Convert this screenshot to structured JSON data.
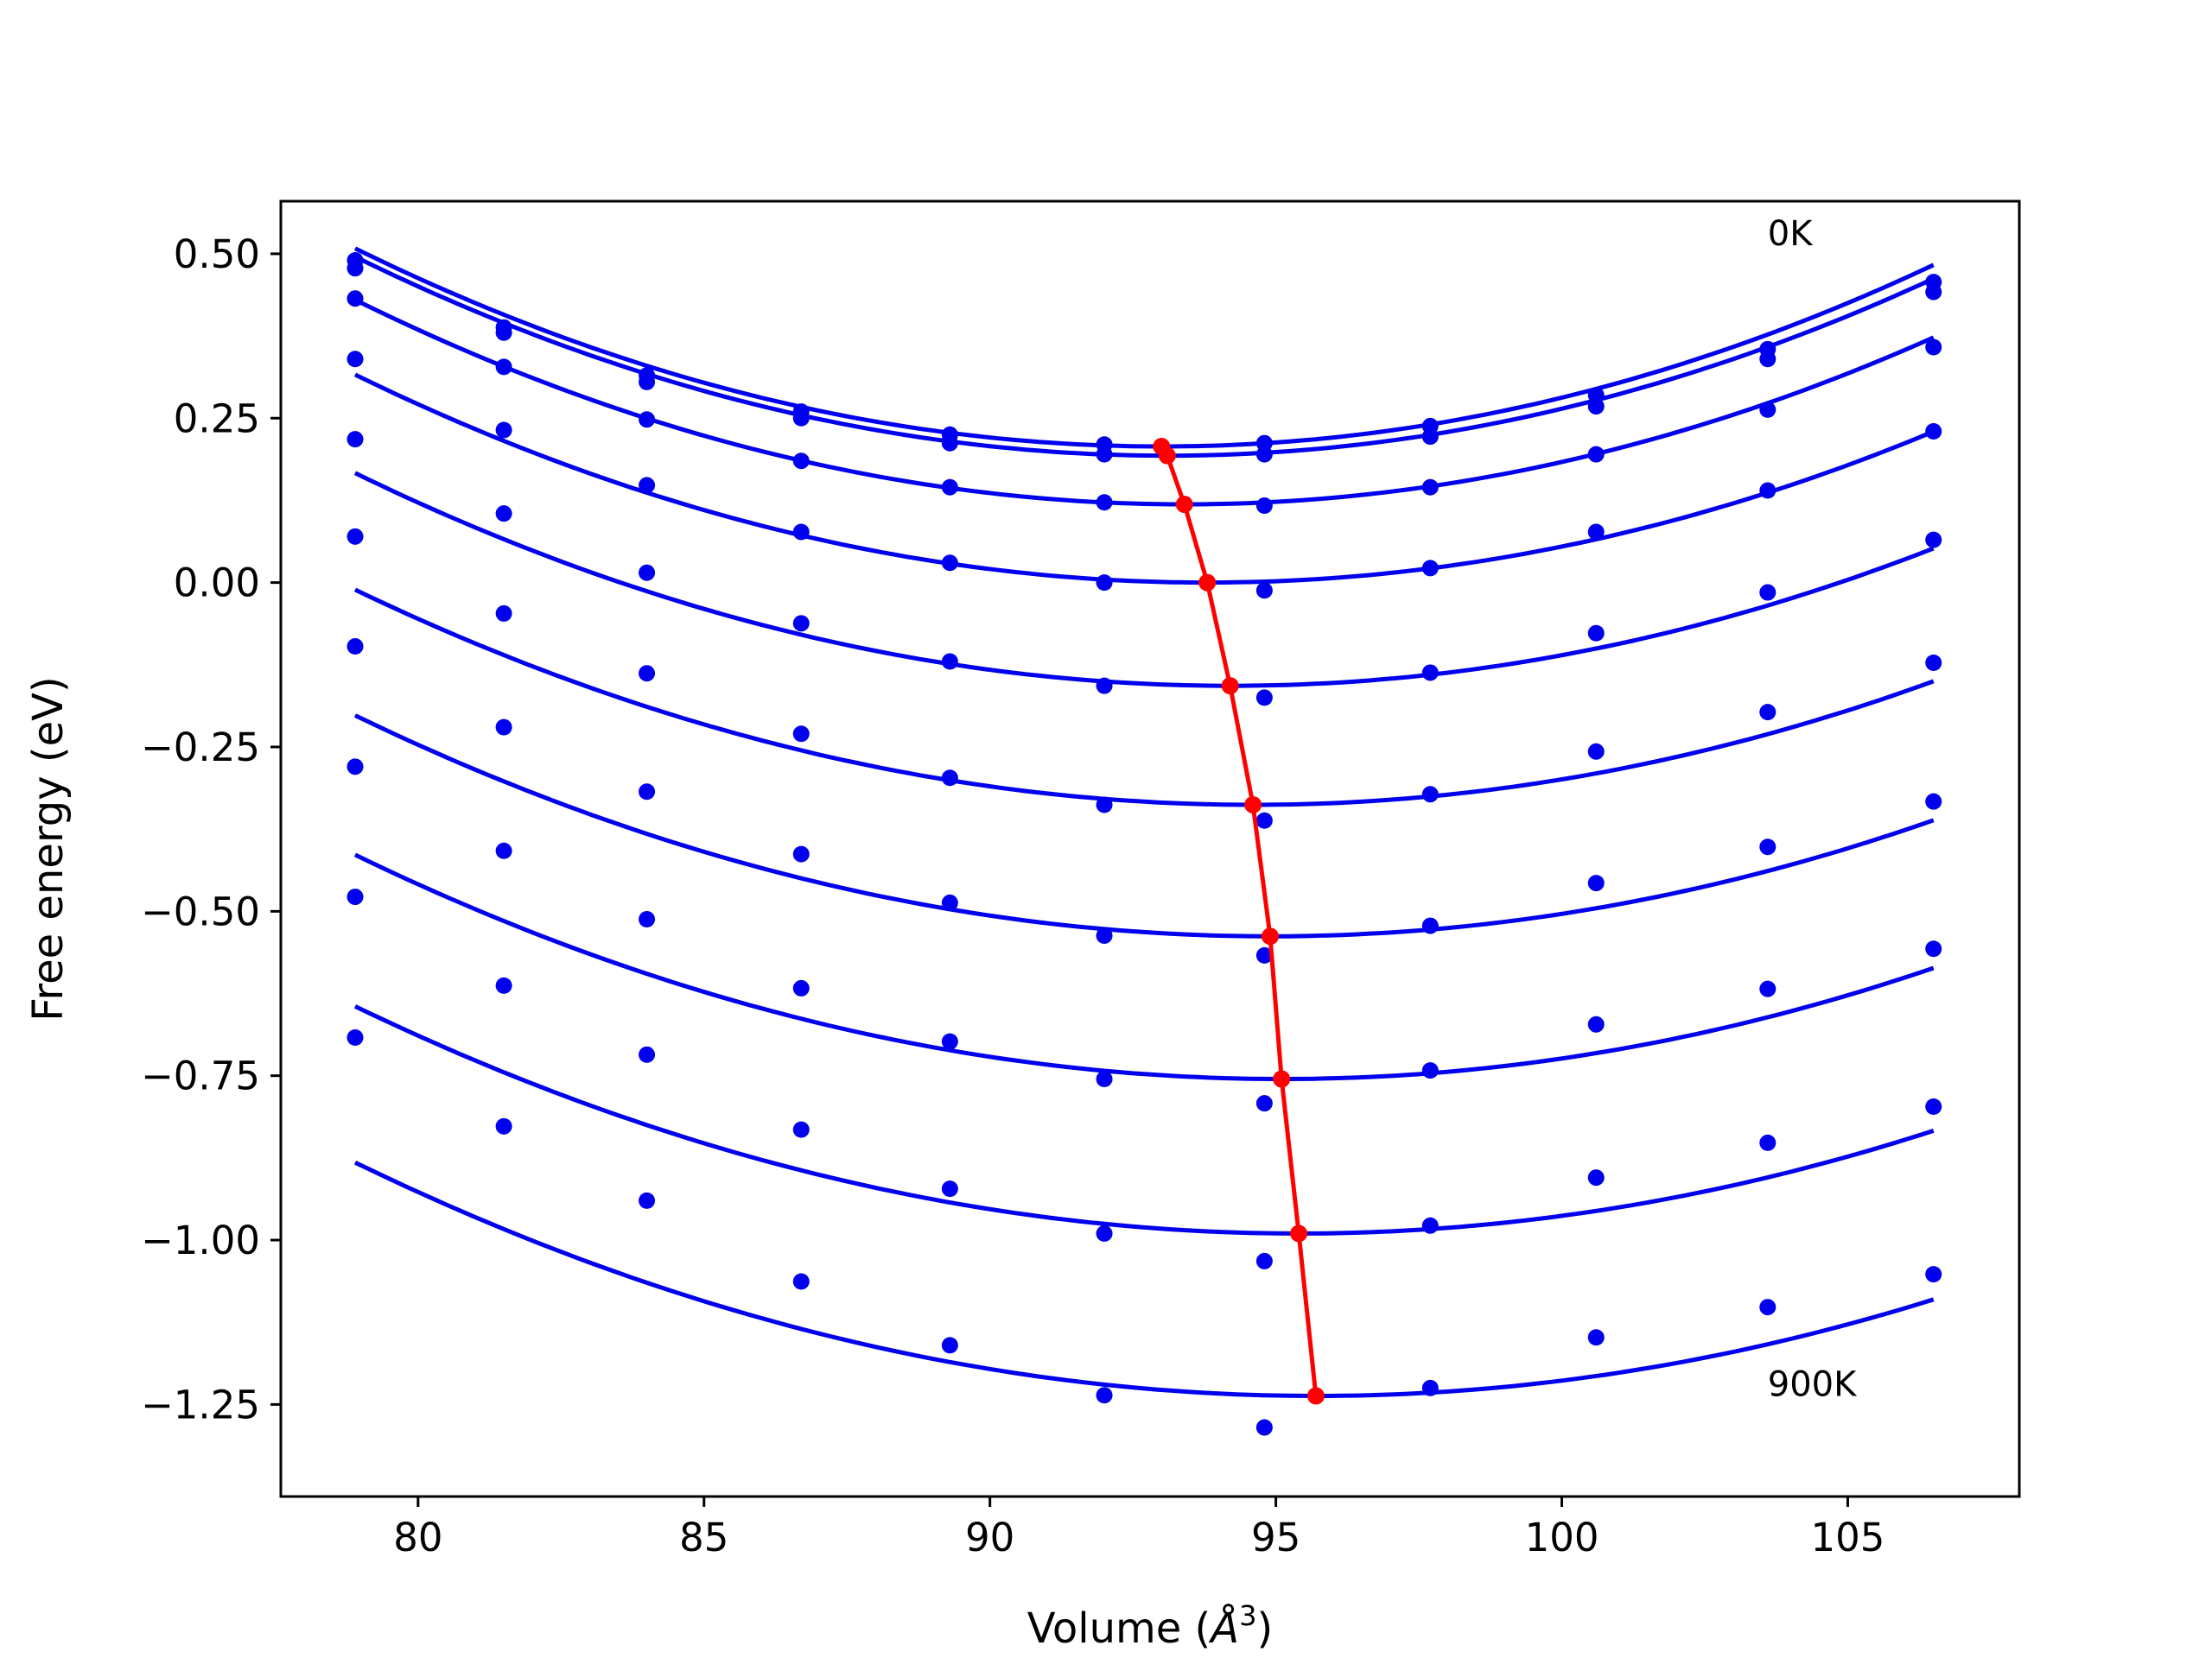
{
  "chart_data": {
    "type": "line",
    "title": "",
    "xlabel": "Volume (",
    "xlabel_symbol": "Å",
    "xlabel_exp": "3",
    "xlabel_close": ")",
    "ylabel": "Free energy (eV)",
    "xlim": [
      77.6,
      108.0
    ],
    "ylim": [
      -1.39,
      0.58
    ],
    "xticks": [
      80,
      85,
      90,
      95,
      100,
      105
    ],
    "xtick_labels": [
      "80",
      "85",
      "90",
      "95",
      "100",
      "105"
    ],
    "yticks": [
      0.5,
      0.25,
      0.0,
      -0.25,
      -0.5,
      -0.75,
      -1.0,
      -1.25
    ],
    "ytick_labels": [
      "0.50",
      "0.25",
      "0.00",
      "−0.25",
      "−0.50",
      "−0.75",
      "−1.00",
      "−1.25"
    ],
    "grid": false,
    "annotations": [
      {
        "text": "0K",
        "x": 103.6,
        "y": 0.5
      },
      {
        "text": "900K",
        "x": 103.6,
        "y": -1.25
      }
    ],
    "volumes": [
      78.9,
      81.5,
      84.0,
      86.7,
      89.3,
      92.0,
      94.8,
      97.7,
      100.6,
      103.6,
      106.5
    ],
    "fit_x_range": [
      78.9,
      106.5
    ],
    "series": [
      {
        "points": [
          0.49,
          0.388,
          0.315,
          0.26,
          0.225,
          0.21,
          0.212,
          0.238,
          0.285,
          0.355,
          0.457
        ],
        "fit": {
          "x0": 93.0,
          "y0": 0.207,
          "a": 0.001515
        }
      },
      {
        "points": [
          0.478,
          0.38,
          0.305,
          0.25,
          0.212,
          0.195,
          0.195,
          0.222,
          0.268,
          0.34,
          0.442
        ],
        "fit": {
          "x0": 93.1,
          "y0": 0.193,
          "a": 0.0015
        }
      },
      {
        "points": [
          0.432,
          0.328,
          0.248,
          0.185,
          0.145,
          0.122,
          0.117,
          0.145,
          0.195,
          0.263,
          0.358
        ],
        "fit": {
          "x0": 93.4,
          "y0": 0.119,
          "a": 0.001479
        }
      },
      {
        "points": [
          0.34,
          0.232,
          0.148,
          0.077,
          0.03,
          0.0,
          -0.012,
          0.022,
          0.077,
          0.14,
          0.23
        ],
        "fit": {
          "x0": 93.8,
          "y0": 0.0,
          "a": 0.001424
        }
      },
      {
        "points": [
          0.218,
          0.105,
          0.015,
          -0.062,
          -0.12,
          -0.157,
          -0.175,
          -0.137,
          -0.077,
          -0.015,
          0.065
        ],
        "fit": {
          "x0": 94.2,
          "y0": -0.157,
          "a": 0.001382
        }
      },
      {
        "points": [
          0.07,
          -0.047,
          -0.138,
          -0.23,
          -0.297,
          -0.338,
          -0.362,
          -0.322,
          -0.257,
          -0.197,
          -0.122
        ],
        "fit": {
          "x0": 94.6,
          "y0": -0.338,
          "a": 0.001327
        }
      },
      {
        "points": [
          -0.097,
          -0.22,
          -0.318,
          -0.413,
          -0.487,
          -0.537,
          -0.567,
          -0.522,
          -0.457,
          -0.402,
          -0.333
        ],
        "fit": {
          "x0": 94.9,
          "y0": -0.538,
          "a": 0.001312
        }
      },
      {
        "points": [
          -0.28,
          -0.408,
          -0.512,
          -0.617,
          -0.698,
          -0.755,
          -0.792,
          -0.742,
          -0.672,
          -0.618,
          -0.557
        ],
        "fit": {
          "x0": 95.1,
          "y0": -0.755,
          "a": 0.001299
        }
      },
      {
        "points": [
          -0.478,
          -0.613,
          -0.718,
          -0.832,
          -0.922,
          -0.99,
          -1.032,
          -0.978,
          -0.905,
          -0.852,
          -0.797
        ],
        "fit": {
          "x0": 95.4,
          "y0": -0.99,
          "a": 0.001269
        }
      },
      {
        "points": [
          -0.692,
          -0.827,
          -0.94,
          -1.063,
          -1.16,
          -1.236,
          -1.285,
          -1.225,
          -1.148,
          -1.102,
          -1.052
        ],
        "fit": {
          "x0": 95.7,
          "y0": -1.237,
          "a": 0.001258
        }
      }
    ],
    "minima_line": {
      "x": [
        93.0,
        93.1,
        93.4,
        93.8,
        94.2,
        94.6,
        94.9,
        95.1,
        95.4,
        95.7
      ],
      "y": [
        0.207,
        0.193,
        0.119,
        0.0,
        -0.157,
        -0.338,
        -0.538,
        -0.755,
        -0.99,
        -1.237
      ]
    },
    "colors": {
      "series": "#0000ee",
      "minima": "#ff0000",
      "axes": "#000000"
    }
  }
}
